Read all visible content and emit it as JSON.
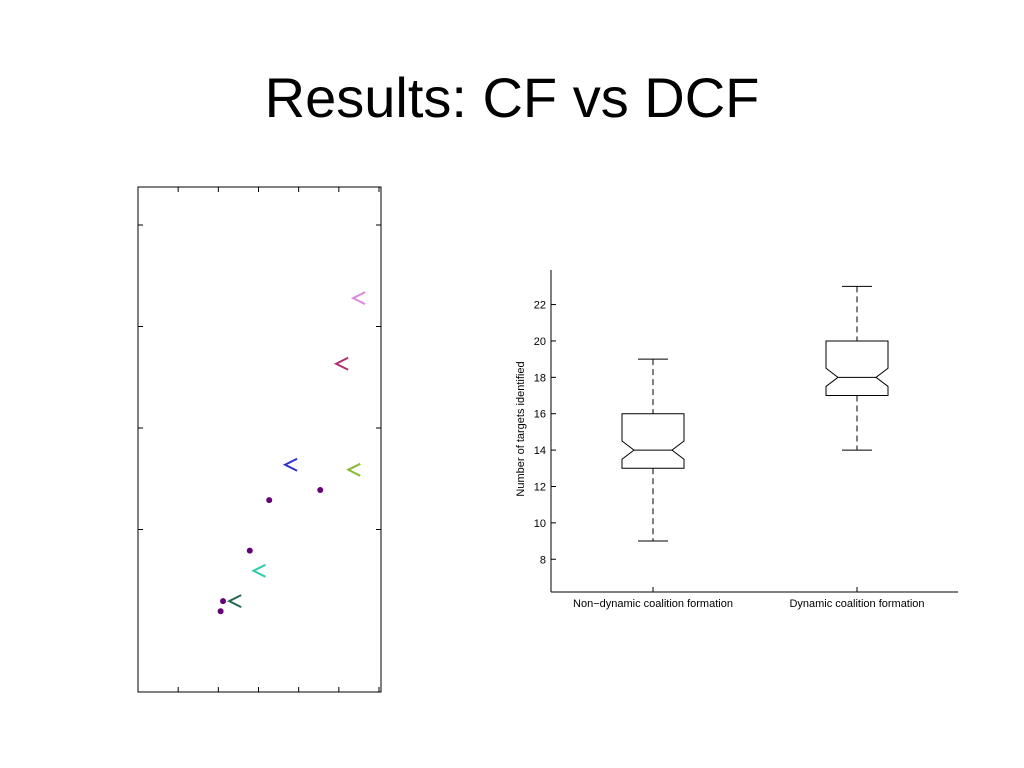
{
  "slide": {
    "title": "Results: CF vs DCF"
  },
  "chart_data": [
    {
      "type": "scatter",
      "title": "",
      "xlabel": "",
      "ylabel": "",
      "grid": false,
      "legend": "none",
      "note": "Axes have tick marks but no printed tick labels; values are relative positions.",
      "series": [
        {
          "marker": "arrow-left",
          "points": [
            {
              "x": 0.91,
              "y": 0.78,
              "color": "#dd88dd"
            },
            {
              "x": 0.84,
              "y": 0.65,
              "color": "#b0306e"
            },
            {
              "x": 0.89,
              "y": 0.44,
              "color": "#88bb33"
            },
            {
              "x": 0.63,
              "y": 0.45,
              "color": "#3333cc"
            },
            {
              "x": 0.5,
              "y": 0.24,
              "color": "#33ccaa"
            },
            {
              "x": 0.4,
              "y": 0.18,
              "color": "#226655"
            }
          ]
        },
        {
          "marker": "dot",
          "points": [
            {
              "x": 0.75,
              "y": 0.4,
              "color": "#660077"
            },
            {
              "x": 0.54,
              "y": 0.38,
              "color": "#660077"
            },
            {
              "x": 0.46,
              "y": 0.28,
              "color": "#660077"
            },
            {
              "x": 0.35,
              "y": 0.18,
              "color": "#660077"
            },
            {
              "x": 0.34,
              "y": 0.16,
              "color": "#660077"
            }
          ]
        }
      ]
    },
    {
      "type": "box",
      "notched": true,
      "title": "",
      "xlabel": "",
      "ylabel": "Number of targets identified",
      "ylim": [
        6.2,
        23.9
      ],
      "yticks": [
        "8",
        "10",
        "12",
        "14",
        "16",
        "18",
        "20",
        "22"
      ],
      "categories": [
        "Non−dynamic coalition formation",
        "Dynamic coalition formation"
      ],
      "boxes": [
        {
          "whisker_low": 9,
          "q1": 13,
          "median": 14,
          "q3": 16,
          "whisker_high": 19,
          "notch_low": 13.5,
          "notch_high": 14.5
        },
        {
          "whisker_low": 14,
          "q1": 17,
          "median": 18,
          "q3": 20,
          "whisker_high": 23,
          "notch_low": 17.5,
          "notch_high": 18.5
        }
      ]
    }
  ]
}
